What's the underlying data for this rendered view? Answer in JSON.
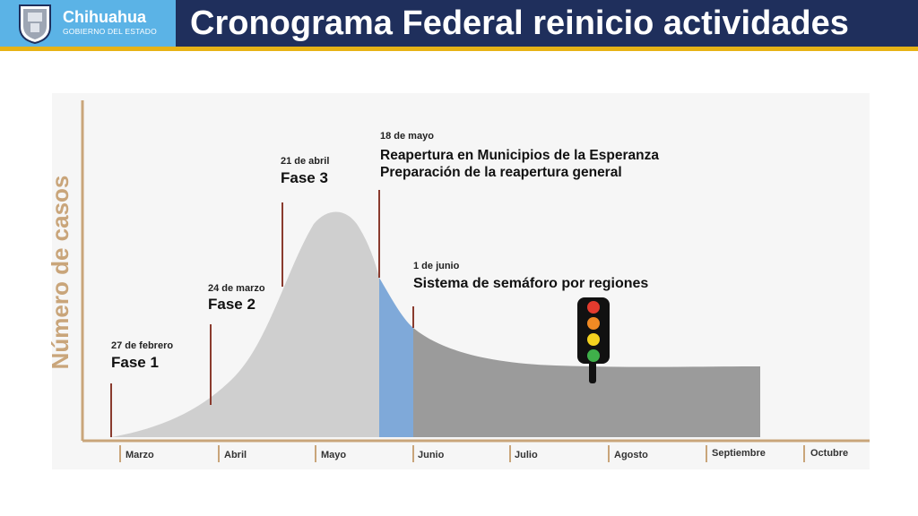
{
  "header": {
    "title": "Cronograma Federal reinicio actividades",
    "brand_name": "Chihuahua",
    "brand_sub": "GOBIERNO DEL ESTADO"
  },
  "chart": {
    "ylabel": "Número de casos",
    "months": [
      "Marzo",
      "Abril",
      "Mayo",
      "Junio",
      "Julio",
      "Agosto",
      "Septiembre",
      "Octubre"
    ],
    "markers": [
      {
        "date": "27 de febrero",
        "lines": [
          "Fase 1"
        ]
      },
      {
        "date": "24 de marzo",
        "lines": [
          "Fase 2"
        ]
      },
      {
        "date": "21 de abril",
        "lines": [
          "Fase 3"
        ]
      },
      {
        "date": "18 de mayo",
        "lines": [
          "Reapertura en Municipios de la Esperanza",
          "Preparación de la reapertura general"
        ]
      },
      {
        "date": "1 de junio",
        "lines": [
          "Sistema de semáforo por regiones"
        ]
      }
    ],
    "colors": {
      "curve_phases": "#cfcfcf",
      "curve_transition": "#7fa9d9",
      "curve_semaforo": "#9b9b9b",
      "marker_line": "#8a3b2e",
      "axis": "#c9a57a",
      "ylabel": "#c9a57a"
    },
    "traffic_light": [
      "red",
      "orange",
      "yellow",
      "green"
    ]
  }
}
